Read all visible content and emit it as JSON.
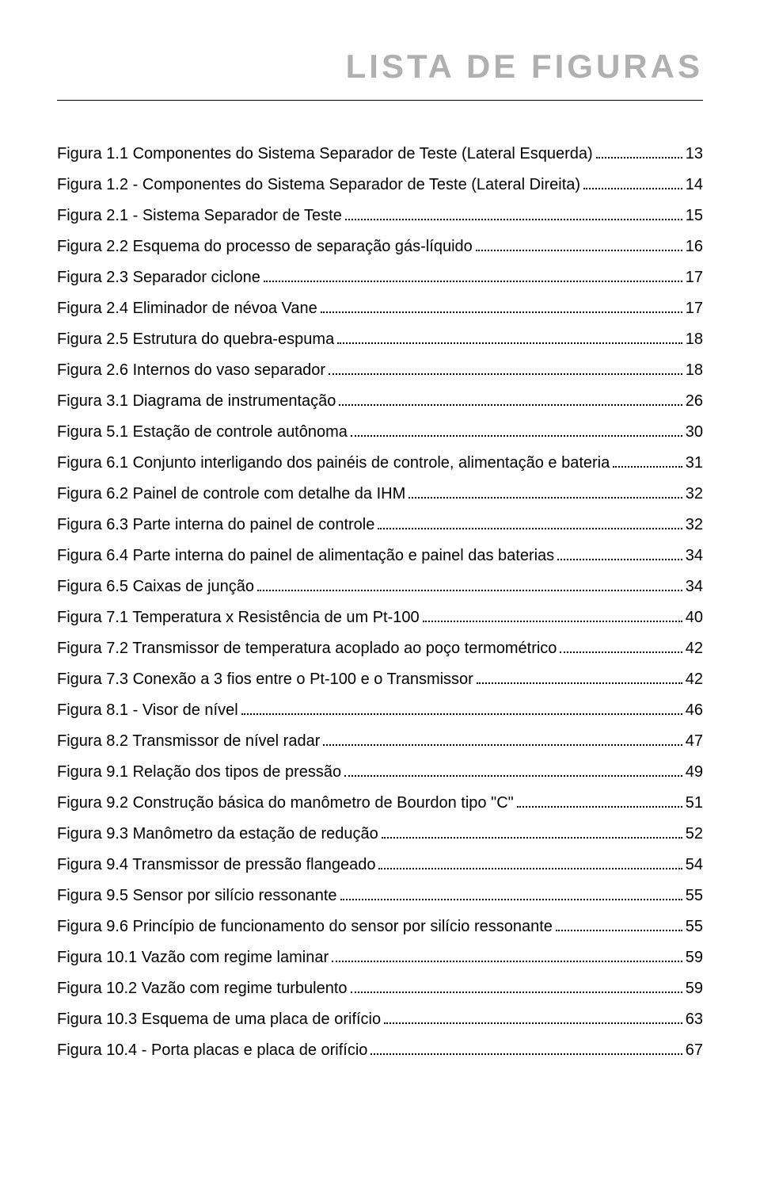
{
  "title": "LISTA DE FIGURAS",
  "title_color": "#b0b0b0",
  "title_fontsize": 42,
  "body_fontsize": 20,
  "text_color": "#000000",
  "rule_color": "#000000",
  "background_color": "#ffffff",
  "entries": [
    {
      "label": "Figura 1.1 Componentes do Sistema Separador de Teste (Lateral Esquerda)",
      "page": "13"
    },
    {
      "label": "Figura 1.2 - Componentes do Sistema Separador de Teste (Lateral Direita)",
      "page": "14"
    },
    {
      "label": "Figura 2.1 - Sistema Separador de Teste",
      "page": "15"
    },
    {
      "label": "Figura 2.2 Esquema do processo de separação gás-líquido",
      "page": "16"
    },
    {
      "label": "Figura 2.3 Separador ciclone",
      "page": "17"
    },
    {
      "label": "Figura 2.4 Eliminador de névoa Vane",
      "page": "17"
    },
    {
      "label": "Figura 2.5 Estrutura do quebra-espuma",
      "page": "18"
    },
    {
      "label": "Figura 2.6 Internos do vaso separador",
      "page": "18"
    },
    {
      "label": "Figura 3.1 Diagrama de instrumentação",
      "page": "26"
    },
    {
      "label": "Figura 5.1 Estação de controle autônoma",
      "page": "30"
    },
    {
      "label": "Figura 6.1 Conjunto interligando dos painéis de controle, alimentação e bateria",
      "page": "31"
    },
    {
      "label": "Figura 6.2 Painel de controle com detalhe da IHM",
      "page": "32"
    },
    {
      "label": "Figura 6.3 Parte interna do painel de controle",
      "page": "32"
    },
    {
      "label": "Figura 6.4 Parte interna do painel de alimentação e painel das baterias",
      "page": "34"
    },
    {
      "label": "Figura 6.5 Caixas de junção",
      "page": "34"
    },
    {
      "label": "Figura 7.1 Temperatura x Resistência de um Pt-100",
      "page": "40"
    },
    {
      "label": "Figura 7.2 Transmissor de temperatura acoplado ao poço termométrico",
      "page": "42"
    },
    {
      "label": "Figura 7.3 Conexão a 3 fios entre o Pt-100 e o Transmissor",
      "page": "42"
    },
    {
      "label": "Figura 8.1 - Visor de nível",
      "page": "46"
    },
    {
      "label": "Figura 8.2 Transmissor de nível radar",
      "page": "47"
    },
    {
      "label": "Figura 9.1 Relação dos tipos de pressão",
      "page": "49"
    },
    {
      "label": "Figura 9.2 Construção básica do manômetro de Bourdon tipo \"C\"",
      "page": "51"
    },
    {
      "label": "Figura 9.3 Manômetro da estação de redução",
      "page": "52"
    },
    {
      "label": "Figura 9.4 Transmissor de pressão flangeado",
      "page": "54"
    },
    {
      "label": "Figura 9.5 Sensor por silício ressonante",
      "page": "55"
    },
    {
      "label": "Figura 9.6 Princípio de funcionamento do sensor por silício ressonante",
      "page": "55"
    },
    {
      "label": "Figura 10.1 Vazão com regime laminar",
      "page": "59"
    },
    {
      "label": "Figura 10.2 Vazão com regime turbulento",
      "page": "59"
    },
    {
      "label": "Figura 10.3 Esquema de uma placa de orifício",
      "page": "63"
    },
    {
      "label": "Figura 10.4 - Porta placas e placa de orifício",
      "page": "67"
    }
  ]
}
